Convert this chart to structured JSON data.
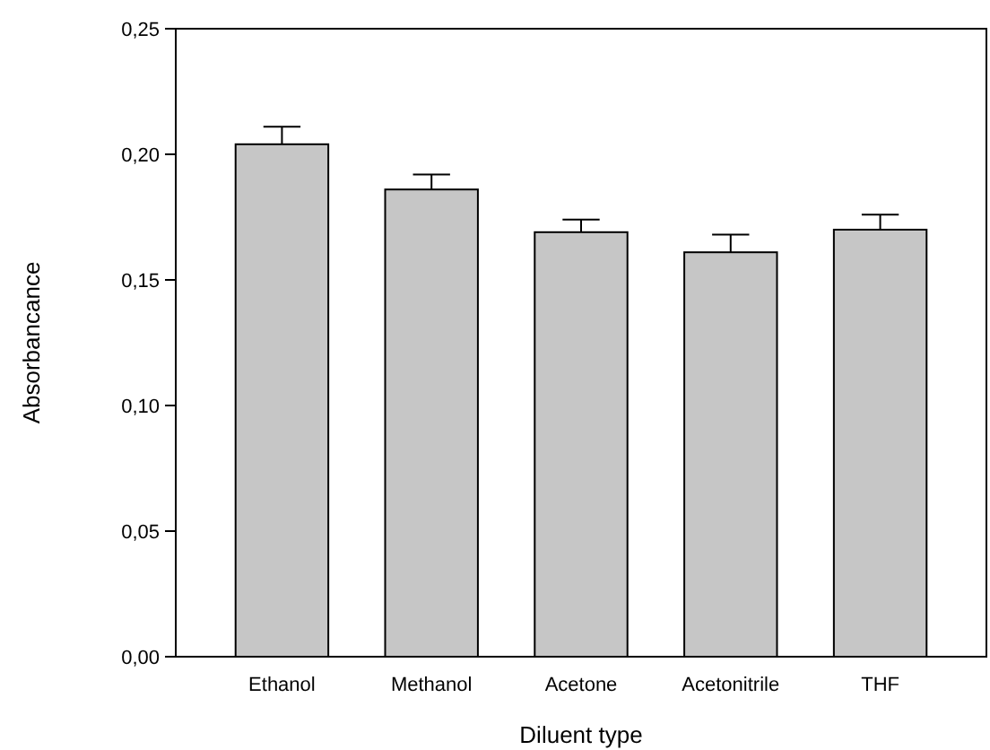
{
  "chart_data": {
    "type": "bar",
    "xlabel": "Diluent type",
    "ylabel": "Absorbancance",
    "categories": [
      "Ethanol",
      "Methanol",
      "Acetone",
      "Acetonitrile",
      "THF"
    ],
    "values": [
      0.204,
      0.186,
      0.169,
      0.161,
      0.17
    ],
    "errors": [
      [
        0.204,
        0.211
      ],
      [
        0.186,
        0.192
      ],
      [
        0.169,
        0.174
      ],
      [
        0.161,
        0.168
      ],
      [
        0.17,
        0.176
      ]
    ],
    "color": "#c6c6c6",
    "ylim": [
      0,
      0.25
    ],
    "yticks": [
      {
        "value": 0,
        "label": "0,00"
      },
      {
        "value": 0.05,
        "label": "0,05"
      },
      {
        "value": 0.1,
        "label": "0,10"
      },
      {
        "value": 0.15,
        "label": "0,15"
      },
      {
        "value": 0.2,
        "label": "0,20"
      },
      {
        "value": 0.25,
        "label": "0,25"
      }
    ],
    "grid": false
  }
}
